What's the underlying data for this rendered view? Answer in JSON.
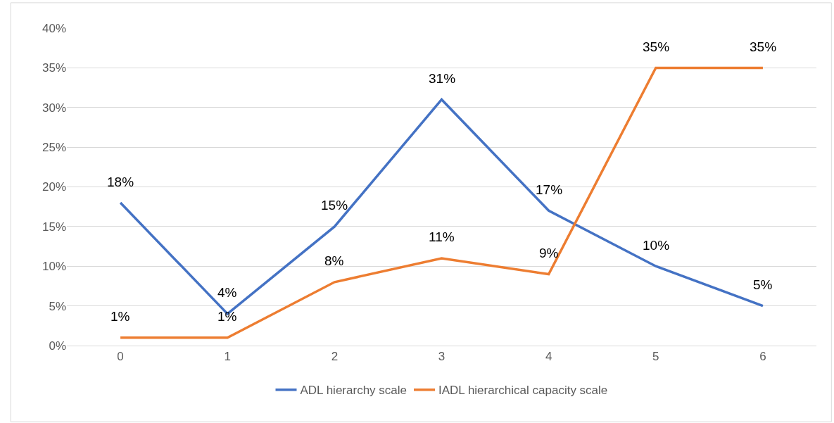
{
  "chart_data": {
    "type": "line",
    "categories": [
      "0",
      "1",
      "2",
      "3",
      "4",
      "5",
      "6"
    ],
    "series": [
      {
        "name": "ADL hierarchy scale",
        "color": "#4472c4",
        "values": [
          18,
          4,
          15,
          31,
          17,
          10,
          5
        ],
        "value_labels": [
          "18%",
          "4%",
          "15%",
          "31%",
          "17%",
          "10%",
          "5%"
        ]
      },
      {
        "name": "IADL hierarchical capacity scale",
        "color": "#ed7d31",
        "values": [
          1,
          1,
          8,
          11,
          9,
          35,
          35
        ],
        "value_labels": [
          "1%",
          "1%",
          "8%",
          "11%",
          "9%",
          "35%",
          "35%"
        ]
      }
    ],
    "ylim": [
      0,
      40
    ],
    "yticks": [
      {
        "value": 0,
        "label": "0%"
      },
      {
        "value": 5,
        "label": "5%"
      },
      {
        "value": 10,
        "label": "10%"
      },
      {
        "value": 15,
        "label": "15%"
      },
      {
        "value": 20,
        "label": "20%"
      },
      {
        "value": 25,
        "label": "25%"
      },
      {
        "value": 30,
        "label": "30%"
      },
      {
        "value": 35,
        "label": "35%"
      },
      {
        "value": 40,
        "label": "40%"
      }
    ],
    "grid": "y",
    "legend": "bottom",
    "marker": "none",
    "line_style": "solid"
  }
}
